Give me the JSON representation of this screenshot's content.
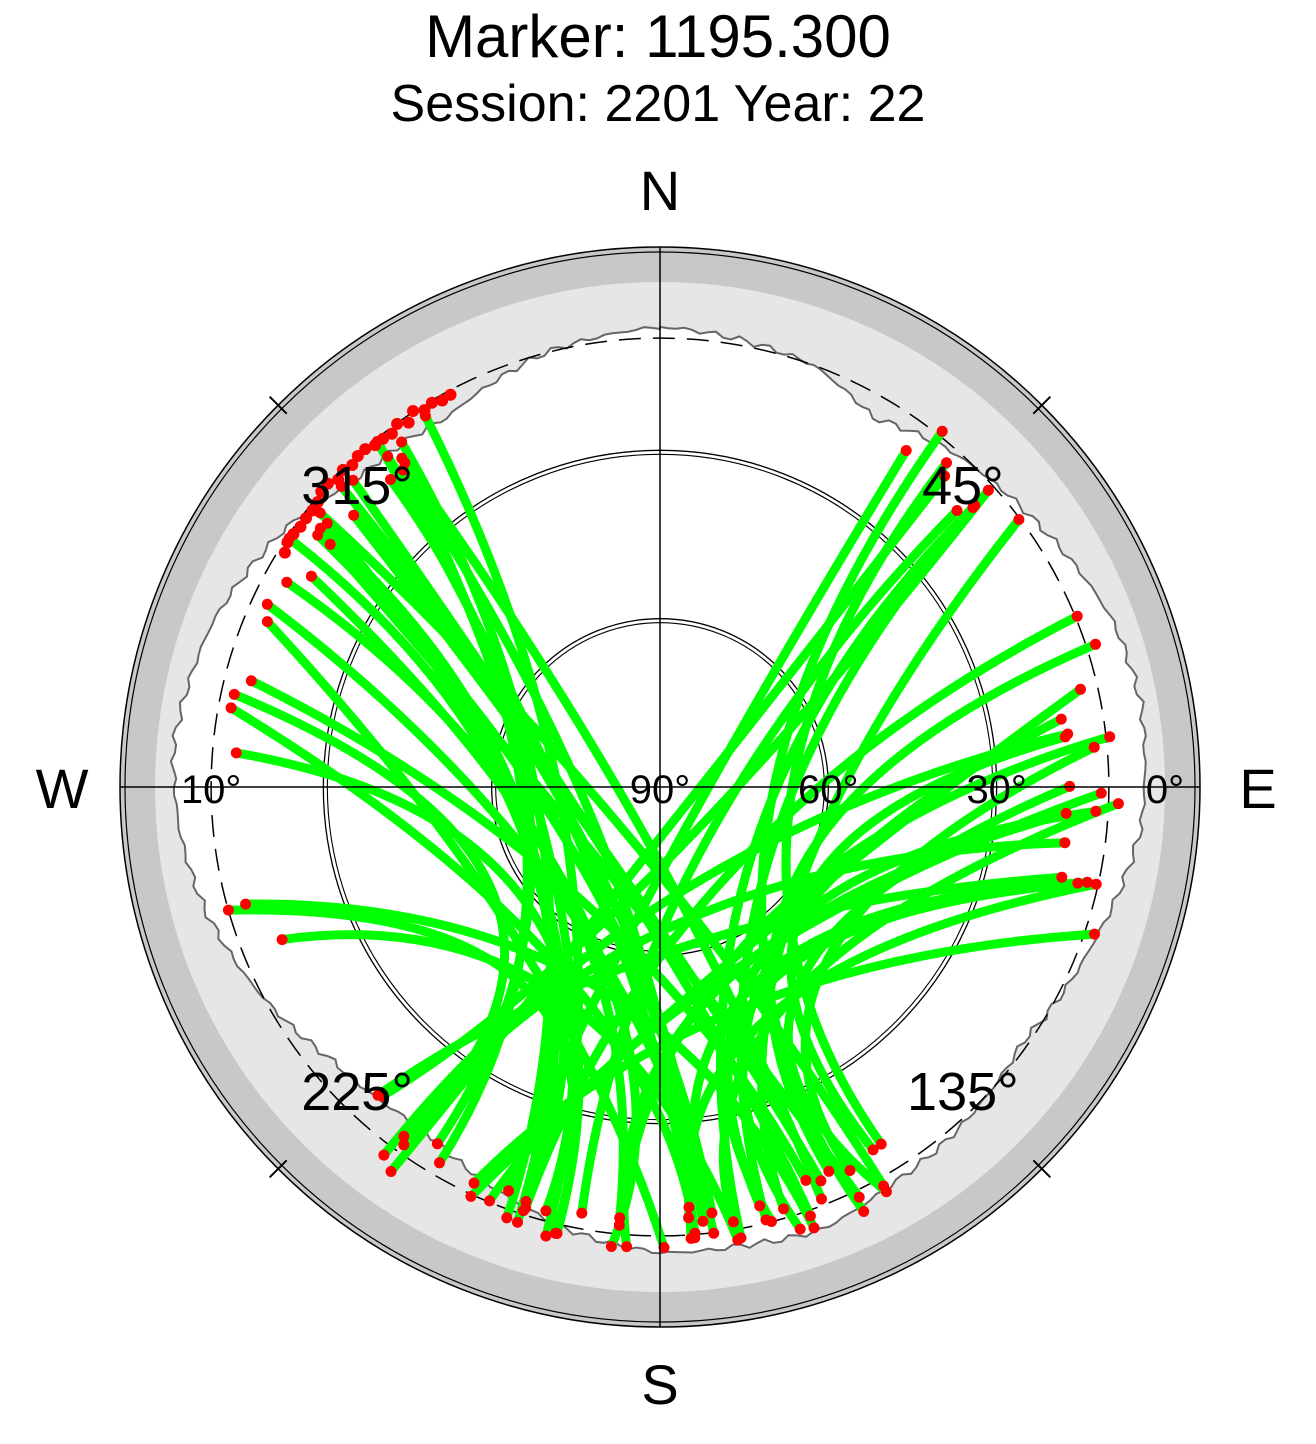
{
  "chart_data": {
    "type": "scatter",
    "projection": "polar-skyplot",
    "title": "Marker: 1195.300",
    "subtitle": "Session: 2201 Year: 22",
    "cardinal_labels": {
      "north": "N",
      "east": "E",
      "south": "S",
      "west": "W"
    },
    "azimuth_labels": [
      {
        "azimuth": 45,
        "text": "45°"
      },
      {
        "azimuth": 135,
        "text": "135°"
      },
      {
        "azimuth": 225,
        "text": "225°"
      },
      {
        "azimuth": 315,
        "text": "315°"
      }
    ],
    "elevation_labels": [
      {
        "elevation": 90,
        "text": "90°",
        "side": "east"
      },
      {
        "elevation": 60,
        "text": "60°",
        "side": "east"
      },
      {
        "elevation": 30,
        "text": "30°",
        "side": "east"
      },
      {
        "elevation": 0,
        "text": "0°",
        "side": "east"
      },
      {
        "elevation": 10,
        "text": "10°",
        "side": "west"
      }
    ],
    "elevation_range": [
      0,
      90
    ],
    "elevation_rings": [
      30,
      60
    ],
    "cutoff_elevation": 10,
    "colors": {
      "track": "#00ff00",
      "below_mask": "#ff0000",
      "outer_band": "#c8c8c8",
      "horizon_mask": "#e6e6e6",
      "background": "#ffffff"
    },
    "horizon_mask_profile": [
      {
        "azimuth": 0,
        "elevation": 8
      },
      {
        "azimuth": 20,
        "elevation": 10
      },
      {
        "azimuth": 30,
        "elevation": 14
      },
      {
        "azimuth": 40,
        "elevation": 11
      },
      {
        "azimuth": 55,
        "elevation": 8
      },
      {
        "azimuth": 70,
        "elevation": 4
      },
      {
        "azimuth": 80,
        "elevation": 3
      },
      {
        "azimuth": 95,
        "elevation": 4
      },
      {
        "azimuth": 110,
        "elevation": 8
      },
      {
        "azimuth": 125,
        "elevation": 11
      },
      {
        "azimuth": 140,
        "elevation": 9
      },
      {
        "azimuth": 150,
        "elevation": 8
      },
      {
        "azimuth": 160,
        "elevation": 6
      },
      {
        "azimuth": 170,
        "elevation": 7
      },
      {
        "azimuth": 180,
        "elevation": 7
      },
      {
        "azimuth": 190,
        "elevation": 9
      },
      {
        "azimuth": 200,
        "elevation": 12
      },
      {
        "azimuth": 215,
        "elevation": 16
      },
      {
        "azimuth": 230,
        "elevation": 14
      },
      {
        "azimuth": 245,
        "elevation": 9
      },
      {
        "azimuth": 255,
        "elevation": 6
      },
      {
        "azimuth": 265,
        "elevation": 4
      },
      {
        "azimuth": 275,
        "elevation": 3
      },
      {
        "azimuth": 290,
        "elevation": 5
      },
      {
        "azimuth": 305,
        "elevation": 9
      },
      {
        "azimuth": 315,
        "elevation": 13
      },
      {
        "azimuth": 330,
        "elevation": 14
      },
      {
        "azimuth": 345,
        "elevation": 10
      },
      {
        "azimuth": 360,
        "elevation": 8
      }
    ],
    "series": [
      {
        "type": "tracks",
        "approx_count": 56,
        "color": "#00ff00"
      },
      {
        "type": "below-mask-points",
        "color": "#ff0000"
      }
    ],
    "grid": true
  }
}
